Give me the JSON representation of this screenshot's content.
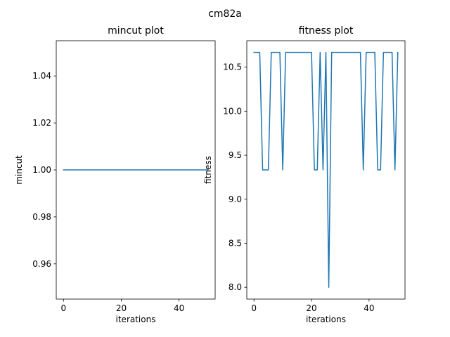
{
  "figure": {
    "suptitle": "cm82a"
  },
  "chart_data": [
    {
      "type": "line",
      "title": "mincut plot",
      "xlabel": "iterations",
      "ylabel": "mincut",
      "xlim": [
        -2.5,
        52.5
      ],
      "ylim": [
        0.945,
        1.055
      ],
      "xticks": [
        0,
        20,
        40
      ],
      "yticks": [
        0.96,
        0.98,
        1.0,
        1.02,
        1.04
      ],
      "ytick_decimals": 2,
      "grid": false,
      "line_color": "#1f77b4",
      "x": [
        0,
        50
      ],
      "y": [
        1.0,
        1.0
      ]
    },
    {
      "type": "line",
      "title": "fitness plot",
      "xlabel": "iterations",
      "ylabel": "fitness",
      "xlim": [
        -2.5,
        52.5
      ],
      "ylim": [
        7.866,
        10.8
      ],
      "xticks": [
        0,
        20,
        40
      ],
      "yticks": [
        8.0,
        8.5,
        9.0,
        9.5,
        10.0,
        10.5
      ],
      "ytick_decimals": 1,
      "grid": false,
      "line_color": "#1f77b4",
      "x": [
        0,
        1,
        2,
        3,
        4,
        5,
        6,
        7,
        8,
        9,
        10,
        11,
        12,
        13,
        14,
        15,
        16,
        17,
        18,
        19,
        20,
        21,
        22,
        23,
        24,
        25,
        26,
        27,
        28,
        29,
        30,
        31,
        32,
        33,
        34,
        35,
        36,
        37,
        38,
        39,
        40,
        41,
        42,
        43,
        44,
        45,
        46,
        47,
        48,
        49,
        50
      ],
      "y": [
        10.667,
        10.667,
        10.667,
        9.333,
        9.333,
        9.333,
        10.667,
        10.667,
        10.667,
        10.667,
        9.333,
        10.667,
        10.667,
        10.667,
        10.667,
        10.667,
        10.667,
        10.667,
        10.667,
        10.667,
        10.667,
        9.333,
        9.333,
        10.667,
        9.333,
        10.667,
        8.0,
        10.667,
        10.667,
        10.667,
        10.667,
        10.667,
        10.667,
        10.667,
        10.667,
        10.667,
        10.667,
        10.667,
        9.333,
        10.667,
        10.667,
        10.667,
        10.667,
        9.333,
        9.333,
        10.667,
        10.667,
        10.667,
        10.667,
        9.333,
        10.667
      ]
    }
  ]
}
